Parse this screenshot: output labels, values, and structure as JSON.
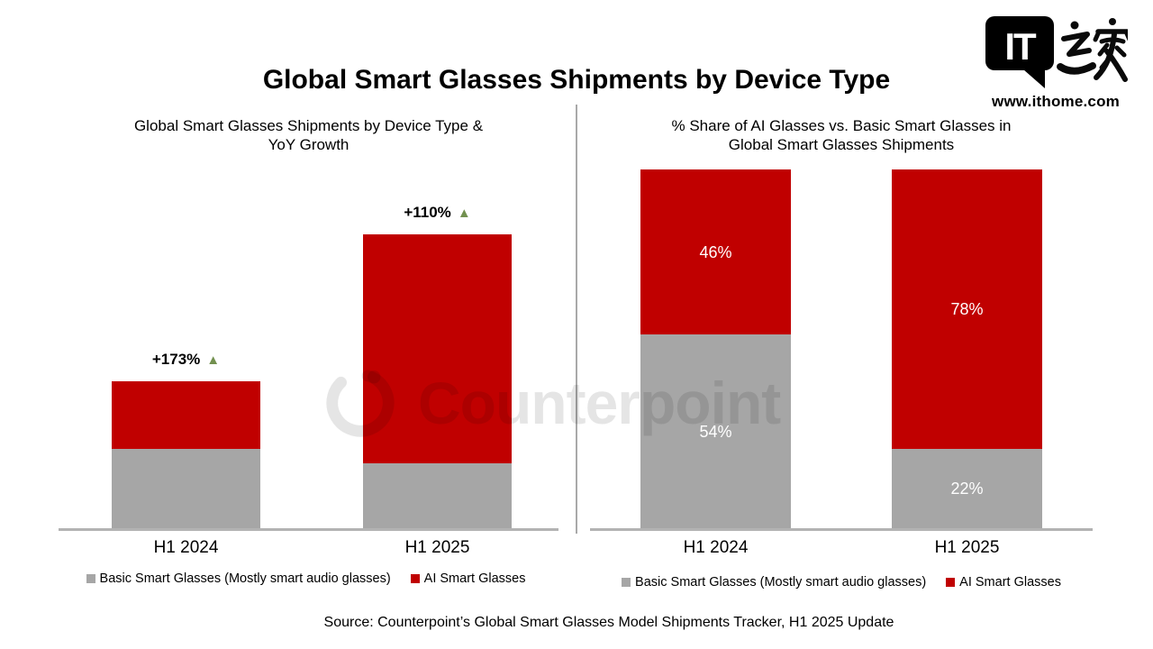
{
  "page": {
    "title": "Global Smart Glasses Shipments by Device Type",
    "source": "Source: Counterpoint’s Global Smart Glasses Model Shipments Tracker, H1 2025 Update"
  },
  "header_logo": {
    "it": "IT",
    "chinese": "之家",
    "url": "www.ithome.com"
  },
  "watermark": {
    "text": "Counterpoint"
  },
  "colors": {
    "ai_red": "#C00000",
    "basic_gray": "#A6A6A6",
    "growth_green": "#72904F",
    "axis_gray": "#B3B3B3",
    "divider_gray": "#A9A9A9",
    "watermark": "rgba(0,0,0,0.10)"
  },
  "legend": {
    "basic_label": "Basic Smart Glasses (Mostly smart audio glasses)",
    "ai_label": "AI Smart Glasses"
  },
  "chart_data": [
    {
      "id": "shipments_by_device_type",
      "type": "bar",
      "stacked": true,
      "title": "Global Smart Glasses Shipments by Device Type & YoY Growth",
      "title_lines": [
        "Global Smart Glasses Shipments by Device Type &",
        "YoY Growth"
      ],
      "categories": [
        "H1 2024",
        "H1 2025"
      ],
      "series": [
        {
          "name": "Basic Smart Glasses (Mostly smart audio glasses)",
          "color_key": "basic_gray",
          "values": [
            54,
            44
          ]
        },
        {
          "name": "AI Smart Glasses",
          "color_key": "ai_red",
          "values": [
            46,
            156
          ]
        }
      ],
      "units_note": "relative shipment volume estimated from bar heights, H1 2024 total = 100; value axis hidden",
      "annotations": [
        {
          "category": "H1 2024",
          "label": "+173%",
          "marker": "▲"
        },
        {
          "category": "H1 2025",
          "label": "+110%",
          "marker": "▲"
        }
      ],
      "legend_position": "bottom",
      "grid": false
    },
    {
      "id": "share_ai_vs_basic",
      "type": "bar",
      "stacked": "100%",
      "title": "% Share of AI Glasses vs. Basic Smart Glasses in Global Smart Glasses Shipments",
      "title_lines": [
        "% Share of AI Glasses vs. Basic Smart Glasses in",
        "Global Smart Glasses Shipments"
      ],
      "categories": [
        "H1 2024",
        "H1 2025"
      ],
      "series": [
        {
          "name": "Basic Smart Glasses (Mostly smart audio glasses)",
          "color_key": "basic_gray",
          "values": [
            54,
            22
          ],
          "labels": [
            "54%",
            "22%"
          ]
        },
        {
          "name": "AI Smart Glasses",
          "color_key": "ai_red",
          "values": [
            46,
            78
          ],
          "labels": [
            "46%",
            "78%"
          ]
        }
      ],
      "legend_position": "bottom",
      "grid": false
    }
  ]
}
